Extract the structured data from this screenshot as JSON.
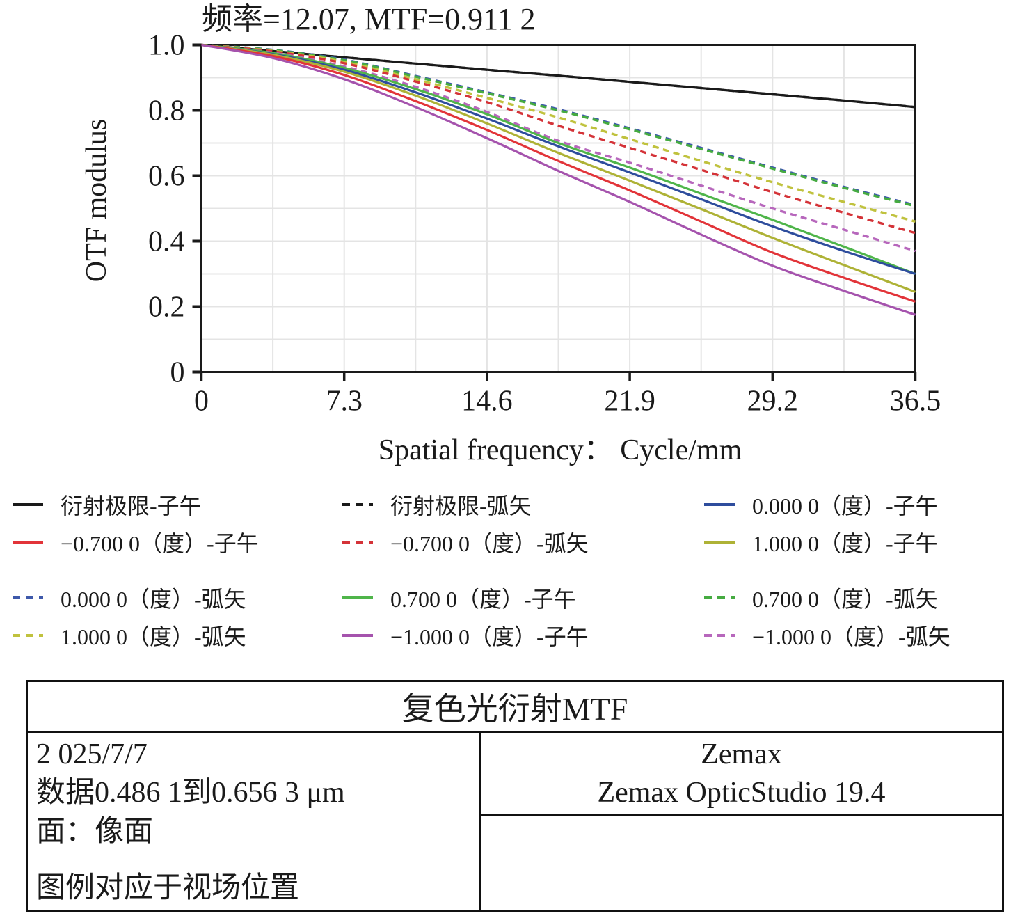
{
  "chart_data": {
    "type": "line",
    "title": "频率=12.07, MTF=0.911 2",
    "xlabel": "Spatial frequency： Cycle/mm",
    "ylabel": "OTF modulus",
    "xlim": [
      0,
      36.5
    ],
    "ylim": [
      0,
      1.0
    ],
    "x_tick_values": [
      0,
      7.3,
      14.6,
      21.9,
      29.2,
      36.5
    ],
    "x_tick_labels": [
      "0",
      "7.3",
      "14.6",
      "21.9",
      "29.2",
      "36.5"
    ],
    "y_tick_values": [
      0,
      0.2,
      0.4,
      0.6,
      0.8,
      1.0
    ],
    "y_tick_labels": [
      "0",
      "0.2",
      "0.4",
      "0.6",
      "0.8",
      "1.0"
    ],
    "grid": {
      "x_minor_step": 3.65,
      "y_minor_step": 0.1,
      "color": "#e4e4e4",
      "on": true
    },
    "legend_position": "below",
    "x": [
      0,
      3.65,
      7.3,
      10.95,
      14.6,
      18.25,
      21.9,
      25.55,
      29.2,
      32.85,
      36.5
    ],
    "series": [
      {
        "name": "衍射极限-子午",
        "color": "#1a1a1a",
        "dash": false,
        "values": [
          1.0,
          0.981,
          0.962,
          0.943,
          0.924,
          0.906,
          0.887,
          0.868,
          0.849,
          0.83,
          0.81
        ]
      },
      {
        "name": "衍射极限-弧矢",
        "color": "#1a1a1a",
        "dash": true,
        "values": [
          1.0,
          0.981,
          0.962,
          0.943,
          0.924,
          0.906,
          0.887,
          0.868,
          0.849,
          0.83,
          0.81
        ]
      },
      {
        "name": "0.000 0（度）-子午",
        "color": "#2e4d9d",
        "dash": false,
        "values": [
          1.0,
          0.972,
          0.924,
          0.855,
          0.775,
          0.69,
          0.61,
          0.528,
          0.445,
          0.37,
          0.3
        ]
      },
      {
        "name": "−0.700 0（度）-子午",
        "color": "#e23439",
        "dash": false,
        "values": [
          1.0,
          0.966,
          0.908,
          0.828,
          0.74,
          0.645,
          0.555,
          0.46,
          0.365,
          0.288,
          0.215
        ]
      },
      {
        "name": "−0.700 0（度）-弧矢",
        "color": "#d43338",
        "dash": true,
        "values": [
          1.0,
          0.98,
          0.944,
          0.888,
          0.825,
          0.753,
          0.685,
          0.618,
          0.55,
          0.487,
          0.425
        ]
      },
      {
        "name": "1.000 0（度）-子午",
        "color": "#aeb236",
        "dash": false,
        "values": [
          1.0,
          0.97,
          0.918,
          0.845,
          0.76,
          0.67,
          0.585,
          0.498,
          0.41,
          0.327,
          0.245
        ]
      },
      {
        "name": "0.000 0（度）-弧矢",
        "color": "#3e59aa",
        "dash": true,
        "values": [
          1.0,
          0.985,
          0.955,
          0.905,
          0.855,
          0.803,
          0.745,
          0.685,
          0.625,
          0.566,
          0.51
        ]
      },
      {
        "name": "0.700 0（度）-子午",
        "color": "#4fb54a",
        "dash": false,
        "values": [
          1.0,
          0.975,
          0.93,
          0.865,
          0.788,
          0.7,
          0.625,
          0.545,
          0.465,
          0.383,
          0.3
        ]
      },
      {
        "name": "0.700 0（度）-弧矢",
        "color": "#46ab41",
        "dash": true,
        "values": [
          1.0,
          0.984,
          0.953,
          0.903,
          0.852,
          0.8,
          0.742,
          0.682,
          0.622,
          0.563,
          0.507
        ]
      },
      {
        "name": "1.000 0（度）-弧矢",
        "color": "#c0c23e",
        "dash": true,
        "values": [
          1.0,
          0.982,
          0.948,
          0.895,
          0.838,
          0.778,
          0.712,
          0.645,
          0.58,
          0.52,
          0.46
        ]
      },
      {
        "name": "−1.000 0（度）-子午",
        "color": "#a553ad",
        "dash": false,
        "values": [
          1.0,
          0.96,
          0.895,
          0.81,
          0.715,
          0.615,
          0.52,
          0.42,
          0.325,
          0.248,
          0.175
        ]
      },
      {
        "name": "−1.000 0（度）-弧矢",
        "color": "#b767bc",
        "dash": true,
        "values": [
          1.0,
          0.976,
          0.934,
          0.872,
          0.795,
          0.707,
          0.64,
          0.57,
          0.5,
          0.435,
          0.37
        ]
      }
    ],
    "draw_order": [
      1,
      0,
      6,
      8,
      9,
      4,
      11,
      7,
      2,
      5,
      3,
      10
    ]
  },
  "legend": {
    "top_rows_indices": [
      0,
      1,
      2,
      3,
      4,
      5
    ],
    "bottom_rows_indices": [
      6,
      7,
      8,
      9,
      10,
      11
    ]
  },
  "info_table": {
    "title": "复色光衍射MTF",
    "left_cell_lines": [
      "2 025/7/7",
      "数据0.486 1到0.656 3 μm",
      "面：像面",
      "图例对应于视场位置"
    ],
    "right_top_cell_lines": [
      "Zemax",
      "Zemax OpticStudio 19.4"
    ],
    "right_bottom_cell": ""
  },
  "colors": {
    "axis": "#1a1a1a",
    "grid": "#e4e4e4",
    "background": "#ffffff"
  }
}
